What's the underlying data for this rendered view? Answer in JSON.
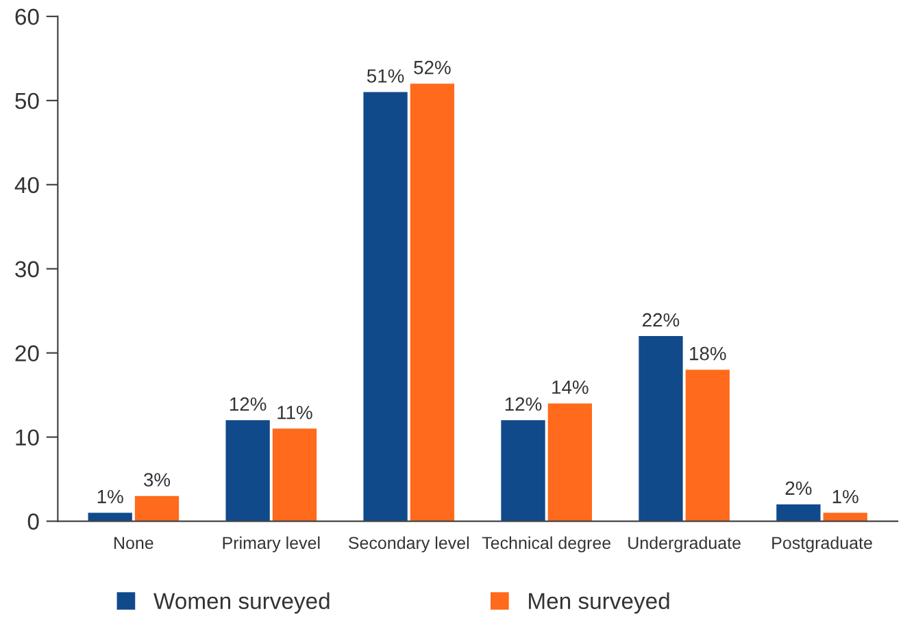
{
  "chart_data": {
    "type": "bar",
    "categories": [
      "None",
      "Primary level",
      "Secondary level",
      "Technical degree",
      "Undergraduate",
      "Postgraduate"
    ],
    "series": [
      {
        "name": "Women surveyed",
        "color": "#114a8b",
        "values": [
          1,
          12,
          51,
          12,
          22,
          2
        ],
        "value_labels": [
          "1%",
          "12%",
          "51%",
          "12%",
          "22%",
          "2%"
        ]
      },
      {
        "name": "Men surveyed",
        "color": "#ff6a1c",
        "values": [
          3,
          11,
          52,
          14,
          18,
          1
        ],
        "value_labels": [
          "3%",
          "11%",
          "52%",
          "14%",
          "18%",
          "1%"
        ]
      }
    ],
    "ylim": [
      0,
      60
    ],
    "yticks": [
      0,
      10,
      20,
      30,
      40,
      50,
      60
    ],
    "grid": false,
    "legend": "bottom"
  }
}
